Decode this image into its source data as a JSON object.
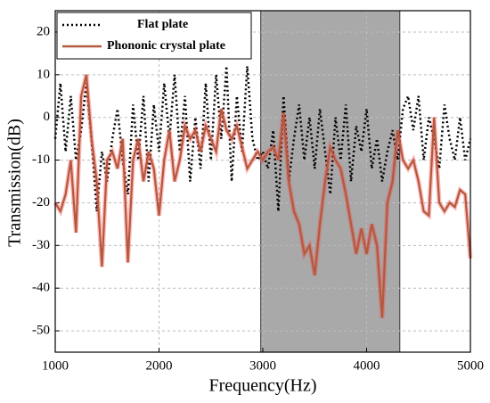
{
  "chart_data": {
    "type": "line",
    "xlabel": "Frequency(Hz)",
    "ylabel": "Transmission(dB)",
    "x": [
      1000,
      1050,
      1100,
      1150,
      1200,
      1250,
      1300,
      1350,
      1400,
      1450,
      1500,
      1550,
      1600,
      1650,
      1700,
      1750,
      1800,
      1850,
      1900,
      1950,
      2000,
      2050,
      2100,
      2150,
      2200,
      2250,
      2300,
      2350,
      2400,
      2450,
      2500,
      2550,
      2600,
      2650,
      2700,
      2750,
      2800,
      2850,
      2900,
      2950,
      3000,
      3050,
      3100,
      3150,
      3200,
      3250,
      3300,
      3350,
      3400,
      3450,
      3500,
      3550,
      3600,
      3650,
      3700,
      3750,
      3800,
      3850,
      3900,
      3950,
      4000,
      4050,
      4100,
      4150,
      4200,
      4250,
      4300,
      4350,
      4400,
      4450,
      4500,
      4550,
      4600,
      4650,
      4700,
      4750,
      4800,
      4850,
      4900,
      4950,
      5000
    ],
    "series": [
      {
        "name": "Flat plate",
        "color": "#000000",
        "dash": true,
        "values": [
          -5,
          8,
          -8,
          5,
          -10,
          -3,
          8,
          -5,
          -22,
          -8,
          -15,
          -5,
          2,
          -10,
          -18,
          3,
          -10,
          5,
          -15,
          3,
          -8,
          8,
          -5,
          10,
          -8,
          5,
          -15,
          0,
          -12,
          8,
          -10,
          10,
          -5,
          12,
          -15,
          5,
          -8,
          12,
          -5,
          -10,
          -8,
          -12,
          -3,
          -22,
          5,
          -15,
          -5,
          3,
          -10,
          0,
          -12,
          2,
          -8,
          -18,
          0,
          -10,
          3,
          -15,
          -2,
          -8,
          2,
          -12,
          -5,
          -15,
          -8,
          -3,
          -10,
          2,
          5,
          -3,
          5,
          -10,
          0,
          -5,
          -12,
          3,
          -5,
          -10,
          0,
          -10,
          -5
        ]
      },
      {
        "name": "Phononic crystal plate",
        "color": "#b35a3e",
        "dash": false,
        "values": [
          -20,
          -22,
          -18,
          -10,
          -27,
          5,
          10,
          -5,
          -15,
          -35,
          -10,
          -8,
          -12,
          -5,
          -34,
          -10,
          -5,
          -15,
          -8,
          -12,
          -23,
          -10,
          -3,
          -15,
          -10,
          -2,
          -5,
          -3,
          -8,
          -2,
          -5,
          -8,
          2,
          -3,
          -5,
          -2,
          -7,
          -12,
          -10,
          -8,
          -10,
          -8,
          -7,
          -10,
          1,
          -15,
          -22,
          -25,
          -32,
          -30,
          -37,
          -25,
          -15,
          -7,
          -10,
          -12,
          -18,
          -25,
          -32,
          -26,
          -32,
          -25,
          -30,
          -47,
          -20,
          -15,
          -3,
          -10,
          -12,
          -10,
          -15,
          -22,
          -23,
          0,
          -20,
          -22,
          -20,
          -21,
          -17,
          -18,
          -33
        ]
      }
    ],
    "highlight_xrange": [
      2980,
      4320
    ],
    "highlight_color": "#a9a9a9",
    "xlim": [
      1000,
      5000
    ],
    "xticks": [
      1000,
      2000,
      3000,
      4000,
      5000
    ],
    "ylim": [
      -55,
      25
    ],
    "yticks": [
      -50,
      -40,
      -30,
      -20,
      -10,
      0,
      10,
      20
    ],
    "grid": true,
    "legend": "upper left"
  }
}
